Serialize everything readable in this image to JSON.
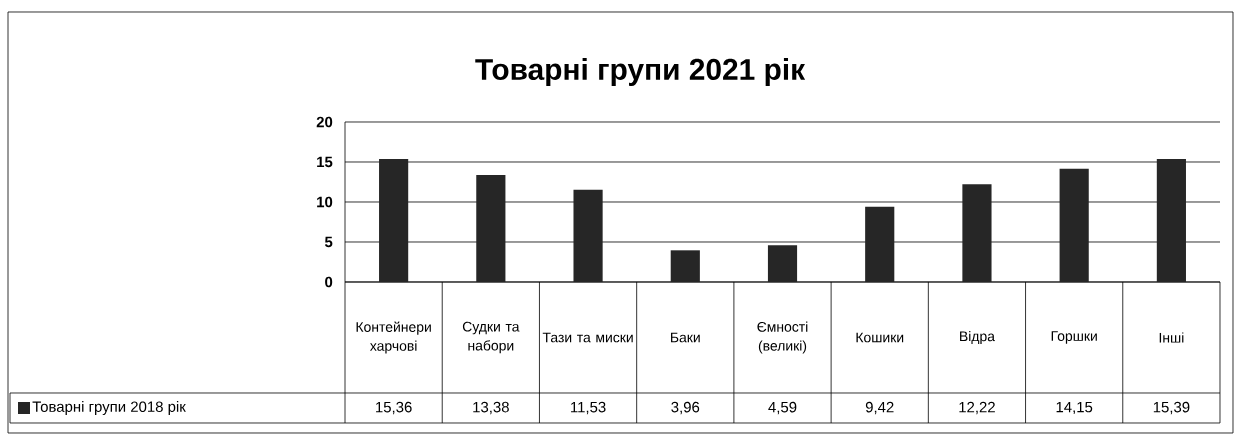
{
  "chart_data": {
    "type": "bar",
    "title": "Товарні групи 2021 рік",
    "categories": [
      "Контейнери харчові",
      "Судки та набори",
      "Тази та миски",
      "Баки",
      "Ємності (великі)",
      "Кошики",
      "Відра",
      "Горшки",
      "Інші"
    ],
    "series": [
      {
        "name": "Товарні групи 2018 рік",
        "color": "#262626",
        "values": [
          15.36,
          13.38,
          11.53,
          3.96,
          4.59,
          9.42,
          12.22,
          14.15,
          15.39
        ],
        "value_labels": [
          "15,36",
          "13,38",
          "11,53",
          "3,96",
          "4,59",
          "9,42",
          "12,22",
          "14,15",
          "15,39"
        ]
      }
    ],
    "ylim": [
      0,
      20
    ],
    "yticks": [
      0,
      5,
      10,
      15,
      20
    ],
    "grid": "y",
    "legend": "bottom left"
  }
}
